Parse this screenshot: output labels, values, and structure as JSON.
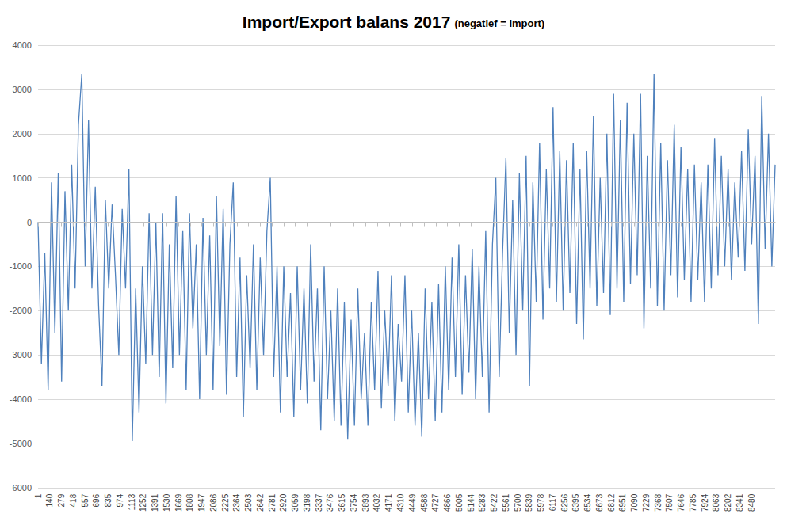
{
  "chart_data": {
    "type": "line",
    "title": "Import/Export balans 2017",
    "subtitle": "(negatief = import)",
    "color": "#4f81bd",
    "grid": true,
    "xlim": [
      1,
      8760
    ],
    "xticks": [
      1,
      140,
      279,
      418,
      557,
      696,
      835,
      974,
      1113,
      1252,
      1391,
      1530,
      1669,
      1808,
      1947,
      2086,
      2225,
      2364,
      2503,
      2642,
      2781,
      2920,
      3059,
      3198,
      3337,
      3476,
      3615,
      3754,
      3893,
      4032,
      4171,
      4310,
      4449,
      4588,
      4727,
      4866,
      5005,
      5144,
      5283,
      5422,
      5561,
      5700,
      5839,
      5978,
      6117,
      6256,
      6395,
      6534,
      6673,
      6812,
      6951,
      7090,
      7229,
      7368,
      7507,
      7646,
      7785,
      7924,
      8063,
      8202,
      8341,
      8480
    ],
    "ylim": [
      -6000,
      4000
    ],
    "yticks": [
      -6000,
      -5000,
      -4000,
      -3000,
      -2000,
      -1000,
      0,
      1000,
      2000,
      3000,
      4000
    ],
    "x": [
      1,
      41,
      81,
      121,
      161,
      201,
      241,
      281,
      321,
      361,
      401,
      441,
      481,
      521,
      561,
      601,
      641,
      681,
      721,
      761,
      801,
      841,
      881,
      921,
      961,
      1001,
      1041,
      1081,
      1121,
      1161,
      1201,
      1241,
      1281,
      1321,
      1361,
      1401,
      1441,
      1481,
      1521,
      1561,
      1601,
      1641,
      1681,
      1721,
      1761,
      1801,
      1841,
      1881,
      1921,
      1961,
      2001,
      2041,
      2081,
      2121,
      2161,
      2201,
      2241,
      2281,
      2321,
      2361,
      2401,
      2441,
      2481,
      2521,
      2561,
      2601,
      2641,
      2681,
      2721,
      2761,
      2801,
      2841,
      2881,
      2921,
      2961,
      3001,
      3041,
      3081,
      3121,
      3161,
      3201,
      3241,
      3281,
      3321,
      3361,
      3401,
      3441,
      3481,
      3521,
      3561,
      3601,
      3641,
      3681,
      3721,
      3761,
      3801,
      3841,
      3881,
      3921,
      3961,
      4001,
      4041,
      4081,
      4121,
      4161,
      4201,
      4241,
      4281,
      4321,
      4361,
      4401,
      4441,
      4481,
      4521,
      4561,
      4601,
      4641,
      4681,
      4721,
      4761,
      4801,
      4841,
      4881,
      4921,
      4961,
      5001,
      5041,
      5081,
      5121,
      5161,
      5201,
      5241,
      5281,
      5321,
      5361,
      5401,
      5441,
      5481,
      5521,
      5561,
      5601,
      5641,
      5681,
      5721,
      5761,
      5801,
      5841,
      5881,
      5921,
      5961,
      6001,
      6041,
      6081,
      6121,
      6161,
      6201,
      6241,
      6281,
      6321,
      6361,
      6401,
      6441,
      6481,
      6521,
      6561,
      6601,
      6641,
      6681,
      6721,
      6761,
      6801,
      6841,
      6881,
      6921,
      6961,
      7001,
      7041,
      7081,
      7121,
      7161,
      7201,
      7241,
      7281,
      7321,
      7361,
      7401,
      7441,
      7481,
      7521,
      7561,
      7601,
      7641,
      7681,
      7721,
      7761,
      7801,
      7841,
      7881,
      7921,
      7961,
      8001,
      8041,
      8081,
      8121,
      8161,
      8201,
      8241,
      8281,
      8321,
      8361,
      8401,
      8441,
      8481,
      8521,
      8561,
      8601,
      8641,
      8681,
      8721,
      8760
    ],
    "values": [
      0,
      -3200,
      -700,
      -3800,
      900,
      -2500,
      1100,
      -3600,
      700,
      -2000,
      1300,
      -1500,
      2200,
      3350,
      -1000,
      2300,
      -1500,
      800,
      -1900,
      -3700,
      500,
      -1500,
      400,
      -1200,
      -3000,
      300,
      -1500,
      1200,
      -4950,
      -1500,
      -4300,
      -1000,
      -3200,
      200,
      -3000,
      0,
      -3500,
      200,
      -4100,
      -500,
      -3300,
      600,
      -3000,
      -200,
      -3800,
      200,
      -2400,
      -500,
      -4000,
      100,
      -3000,
      -300,
      -3800,
      600,
      -2800,
      300,
      -3900,
      -500,
      900,
      -3500,
      -800,
      -4400,
      -1200,
      -3300,
      -500,
      -3800,
      -800,
      -3000,
      -200,
      1000,
      -3500,
      -1000,
      -4300,
      -1000,
      -3500,
      -1600,
      -4400,
      -1000,
      -3800,
      -1500,
      -4100,
      -500,
      -3600,
      -1500,
      -4700,
      -1000,
      -4000,
      -2000,
      -4500,
      -1500,
      -4600,
      -1800,
      -4900,
      -2200,
      -4600,
      -1500,
      -4000,
      -2500,
      -4600,
      -1800,
      -3800,
      -1100,
      -4200,
      -2000,
      -3700,
      -1200,
      -4500,
      -2300,
      -3600,
      -1200,
      -4300,
      -2000,
      -4600,
      -2500,
      -4850,
      -1500,
      -4000,
      -1800,
      -4500,
      -1400,
      -4300,
      -1000,
      -3800,
      -800,
      -3500,
      -500,
      -3900,
      -1200,
      -3400,
      -600,
      -4000,
      -1000,
      -3500,
      -200,
      -4300,
      -500,
      1000,
      -3500,
      -700,
      1450,
      -2500,
      500,
      -3000,
      1100,
      -2000,
      1500,
      -3700,
      900,
      -1800,
      1800,
      -2200,
      1200,
      -1500,
      2600,
      -1800,
      1600,
      -2000,
      1400,
      -1600,
      1800,
      -2300,
      1200,
      -2650,
      1600,
      -1500,
      2400,
      -1900,
      1000,
      -1600,
      2000,
      -2100,
      2900,
      -1500,
      2300,
      -1800,
      2700,
      -1400,
      2000,
      -1200,
      2900,
      -2400,
      1500,
      -1500,
      3350,
      -1900,
      1800,
      -2000,
      1400,
      -1200,
      2200,
      -1700,
      1700,
      -1300,
      1200,
      -1800,
      1300,
      -1300,
      900,
      -1800,
      1300,
      -1500,
      1900,
      -1200,
      1500,
      -1000,
      1200,
      -1300,
      900,
      -800,
      1600,
      -1100,
      2100,
      -500,
      1500,
      -2300,
      2850,
      -600,
      2000,
      -1000,
      1300
    ]
  }
}
